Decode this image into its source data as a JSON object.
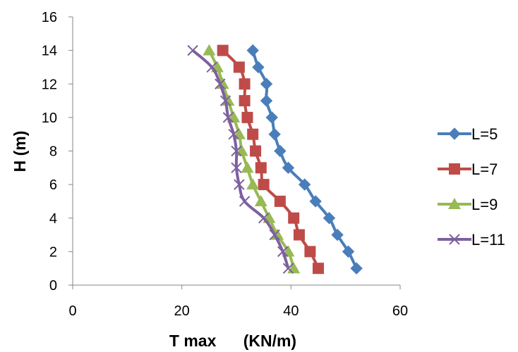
{
  "chart_data": {
    "type": "line",
    "xlabel": "T max      (KN/m)",
    "ylabel": "H (m)",
    "xlim": [
      0,
      60
    ],
    "ylim": [
      0,
      16
    ],
    "x_ticks": [
      "0",
      "20",
      "40",
      "60"
    ],
    "y_ticks": [
      "0",
      "2",
      "4",
      "6",
      "8",
      "10",
      "12",
      "14",
      "16"
    ],
    "grid": false,
    "legend_position": "right",
    "series": [
      {
        "name": "L=5",
        "color": "#4a7ebb",
        "marker": "diamond",
        "points": [
          [
            52,
            1
          ],
          [
            50.5,
            2
          ],
          [
            48.5,
            3
          ],
          [
            47,
            4
          ],
          [
            44.5,
            5
          ],
          [
            42.5,
            6
          ],
          [
            39.5,
            7
          ],
          [
            38,
            8
          ],
          [
            37,
            9
          ],
          [
            36.5,
            10
          ],
          [
            35.5,
            11
          ],
          [
            35.5,
            12
          ],
          [
            34,
            13
          ],
          [
            33,
            14
          ]
        ]
      },
      {
        "name": "L=7",
        "color": "#be4b48",
        "marker": "square",
        "points": [
          [
            45,
            1
          ],
          [
            43.5,
            2
          ],
          [
            41.5,
            3
          ],
          [
            40.5,
            4
          ],
          [
            38,
            5
          ],
          [
            35,
            6
          ],
          [
            34.5,
            7
          ],
          [
            33.5,
            8
          ],
          [
            33,
            9
          ],
          [
            32,
            10
          ],
          [
            31.5,
            11
          ],
          [
            31.5,
            12
          ],
          [
            30.5,
            13
          ],
          [
            27.5,
            14
          ]
        ]
      },
      {
        "name": "L=9",
        "color": "#98b954",
        "marker": "triangle",
        "points": [
          [
            40.5,
            1
          ],
          [
            39.5,
            2
          ],
          [
            37.5,
            3
          ],
          [
            36,
            4
          ],
          [
            34.5,
            5
          ],
          [
            33,
            6
          ],
          [
            32,
            7
          ],
          [
            31,
            8
          ],
          [
            30.5,
            9
          ],
          [
            29.5,
            10
          ],
          [
            28.5,
            11
          ],
          [
            27.5,
            12
          ],
          [
            26.5,
            13
          ],
          [
            25,
            14
          ]
        ]
      },
      {
        "name": "L=11",
        "color": "#7d60a0",
        "marker": "x",
        "points": [
          [
            39.5,
            1
          ],
          [
            38.5,
            2
          ],
          [
            37,
            3
          ],
          [
            35,
            4
          ],
          [
            31.5,
            5
          ],
          [
            30.5,
            6
          ],
          [
            30,
            7
          ],
          [
            30,
            8
          ],
          [
            29.5,
            9
          ],
          [
            28.5,
            10
          ],
          [
            28,
            11
          ],
          [
            27,
            12
          ],
          [
            25.5,
            13
          ],
          [
            22,
            14
          ]
        ]
      }
    ]
  }
}
